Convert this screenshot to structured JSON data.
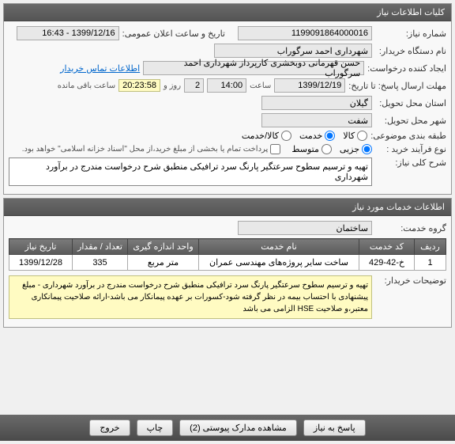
{
  "panels": {
    "info_header": "کلیات اطلاعات نیاز",
    "services_header": "اطلاعات خدمات مورد نیاز"
  },
  "labels": {
    "need_number": "شماره نیاز:",
    "public_date": "تاریخ و ساعت اعلان عمومی:",
    "org_name": "نام دستگاه خریدار:",
    "creator": "ایجاد کننده درخواست:",
    "contact_link": "اطلاعات تماس خریدار",
    "deadline": "مهلت ارسال پاسخ: تا تاریخ:",
    "time_label": "ساعت",
    "remaining_suffix": "ساعت باقی مانده",
    "days_and": "روز و",
    "delivery_province": "استان محل تحویل:",
    "delivery_city": "شهر محل تحویل:",
    "categories": "طبقه بندی موضوعی:",
    "goods": "کالا",
    "services": "خدمت",
    "goods_services": "کالا/خدمت",
    "purchase_type": "نوع فرآیند خرید :",
    "partial": "جزیی",
    "medium": "متوسط",
    "payment_note": "پرداخت تمام یا بخشی از مبلغ خرید،از محل \"اسناد خزانه اسلامی\" خواهد بود.",
    "general_desc": "شرح کلی نیاز:",
    "service_group": "گروه خدمت:",
    "buyer_notes": "توضیحات خریدار:"
  },
  "values": {
    "need_number": "1199091864000016",
    "public_date": "1399/12/16 - 16:43",
    "org_name": "شهرداری احمد سرگوراب",
    "creator": "حسن قهرمانی دوبخشری کارپرداز شهرداری احمد سرگوراب",
    "deadline_date": "1399/12/19",
    "deadline_time": "14:00",
    "remaining_days": "2",
    "remaining_time": "20:23:58",
    "province": "گیلان",
    "city": "شفت",
    "general_desc": "تهیه و ترسیم سطوح سرعتگیر پارنگ سرد ترافیکی منطبق شرح درخواست مندرج در برآورد شهرداری",
    "service_group": "ساختمان",
    "buyer_notes": "تهیه و ترسیم سطوح سرعتگیر پارنگ سرد ترافیکی منطبق شرح درخواست مندرج در برآورد شهرداری - مبلغ پیشنهادی با احتساب بیمه در نظر گرفته شود-کسورات بر عهده پیمانکار می باشد-ارائه صلاحیت پیمانکاری معتبر،و صلاحیت HSE الزامی می باشد"
  },
  "table": {
    "headers": {
      "row": "ردیف",
      "code": "کد خدمت",
      "name": "نام خدمت",
      "unit": "واحد اندازه گیری",
      "qty": "تعداد / مقدار",
      "date": "تاریخ نیاز"
    },
    "rows": [
      {
        "row": "1",
        "code": "خ-42-429",
        "name": "ساخت سایر پروژه‌های مهندسی عمران",
        "unit": "متر مربع",
        "qty": "335",
        "date": "1399/12/28"
      }
    ]
  },
  "buttons": {
    "respond": "پاسخ به نیاز",
    "attachments": "مشاهده مدارک پیوستی (2)",
    "print": "چاپ",
    "exit": "خروج"
  },
  "radios": {
    "category_selected": "services",
    "purchase_selected": "partial"
  },
  "colors": {
    "header_bg": "#5a5a5a",
    "highlight_bg": "#fffbc2",
    "link": "#0066cc"
  }
}
